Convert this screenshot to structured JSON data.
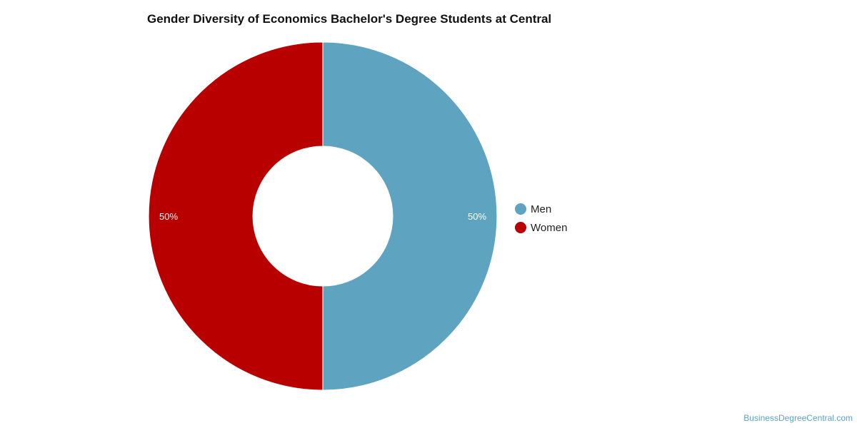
{
  "chart_data": {
    "type": "pie",
    "style": "donut",
    "title": "Gender Diversity of Economics Bachelor's Degree Students at Central",
    "categories": [
      "Men",
      "Women"
    ],
    "values": [
      50,
      50
    ],
    "value_labels": [
      "50%",
      "50%"
    ],
    "colors": [
      "#5ea3c0",
      "#b90000"
    ],
    "legend": {
      "placement": "right",
      "entries": [
        "Men",
        "Women"
      ]
    }
  },
  "footer": {
    "source": "BusinessDegreeCentral.com"
  }
}
